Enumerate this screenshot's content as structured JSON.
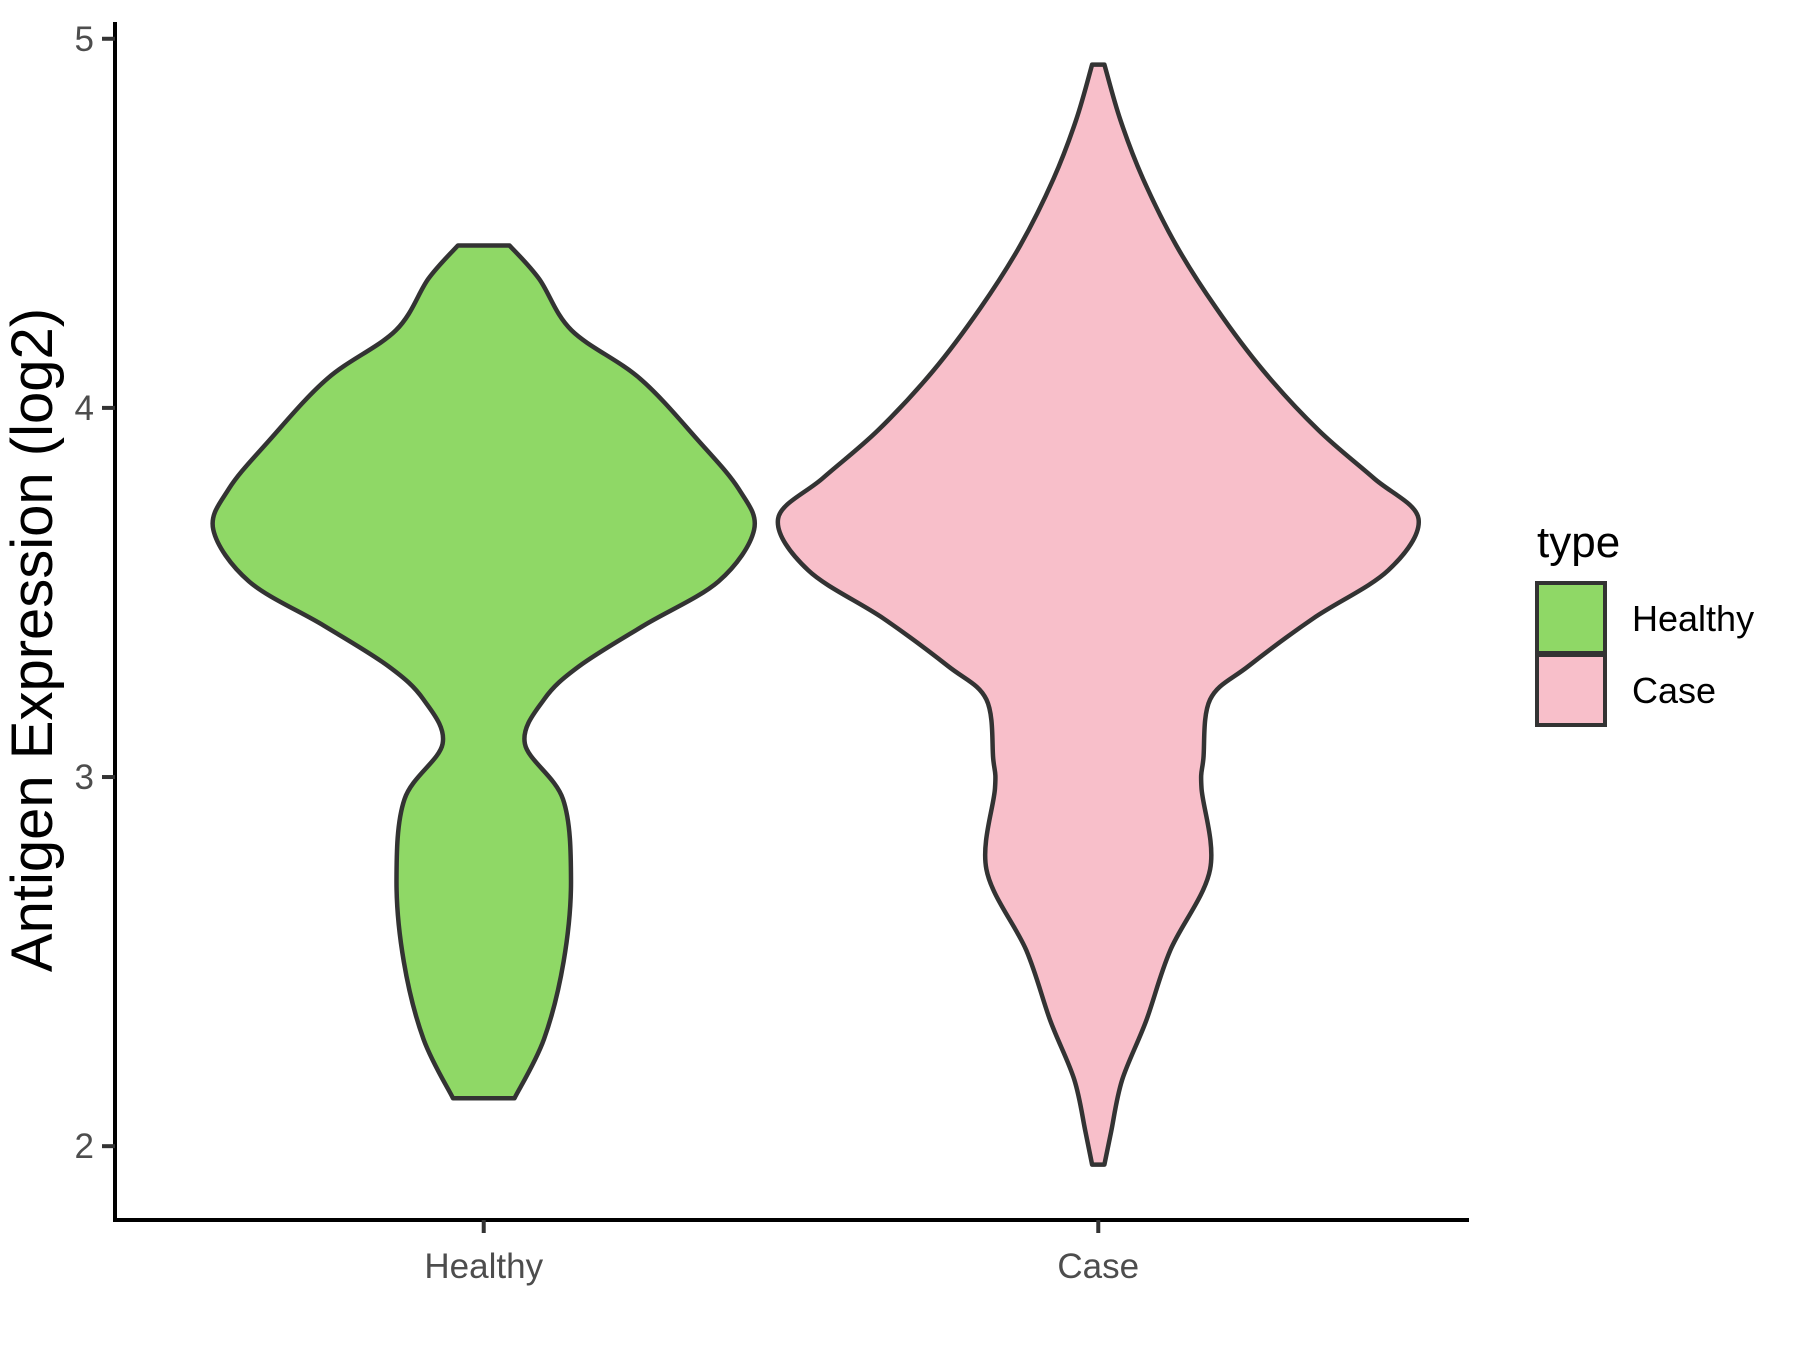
{
  "chart_data": {
    "type": "violin",
    "title": "",
    "xlabel": "",
    "ylabel": "Antigen Expression (log2)",
    "categories": [
      "Healthy",
      "Case"
    ],
    "y_ticks": [
      2,
      3,
      4,
      5
    ],
    "ylim": [
      1.8,
      5.04
    ],
    "grid": "off",
    "background": "#FFFFFF",
    "legend": {
      "title": "type",
      "position": "right",
      "entries": [
        "Healthy",
        "Case"
      ]
    },
    "series": [
      {
        "name": "Healthy",
        "color": "#8FD866",
        "outline": "#333333",
        "value_range": [
          2.13,
          4.44
        ],
        "widest_at_value": 3.67,
        "shape": "two-lobed: broad upper bulge near 3.7, narrow waist near 3.1, small lower lobe near 2.7, trimmed flat at both ends",
        "profile": [
          {
            "v": 4.44,
            "w": 0.042
          },
          {
            "v": 4.35,
            "w": 0.09
          },
          {
            "v": 4.21,
            "w": 0.143
          },
          {
            "v": 4.08,
            "w": 0.254
          },
          {
            "v": 3.91,
            "w": 0.35
          },
          {
            "v": 3.78,
            "w": 0.415
          },
          {
            "v": 3.67,
            "w": 0.44
          },
          {
            "v": 3.53,
            "w": 0.382
          },
          {
            "v": 3.41,
            "w": 0.26
          },
          {
            "v": 3.3,
            "w": 0.155
          },
          {
            "v": 3.21,
            "w": 0.098
          },
          {
            "v": 3.09,
            "w": 0.067
          },
          {
            "v": 2.94,
            "w": 0.129
          },
          {
            "v": 2.72,
            "w": 0.142
          },
          {
            "v": 2.5,
            "w": 0.13
          },
          {
            "v": 2.29,
            "w": 0.098
          },
          {
            "v": 2.13,
            "w": 0.05
          }
        ]
      },
      {
        "name": "Case",
        "color": "#F8BFCA",
        "outline": "#333333",
        "value_range": [
          1.95,
          4.93
        ],
        "widest_at_value": 3.7,
        "shape": "long spindle: pointed tips at both ends, broad bulge near 3.7, gentle waist near 3.0, slight lower lobe near 2.75",
        "profile": [
          {
            "v": 4.93,
            "w": 0.01
          },
          {
            "v": 4.78,
            "w": 0.036
          },
          {
            "v": 4.62,
            "w": 0.073
          },
          {
            "v": 4.44,
            "w": 0.127
          },
          {
            "v": 4.27,
            "w": 0.192
          },
          {
            "v": 4.1,
            "w": 0.269
          },
          {
            "v": 3.94,
            "w": 0.358
          },
          {
            "v": 3.81,
            "w": 0.448
          },
          {
            "v": 3.7,
            "w": 0.521
          },
          {
            "v": 3.56,
            "w": 0.472
          },
          {
            "v": 3.43,
            "w": 0.35
          },
          {
            "v": 3.3,
            "w": 0.244
          },
          {
            "v": 3.21,
            "w": 0.182
          },
          {
            "v": 3.05,
            "w": 0.171
          },
          {
            "v": 2.97,
            "w": 0.168
          },
          {
            "v": 2.75,
            "w": 0.182
          },
          {
            "v": 2.53,
            "w": 0.117
          },
          {
            "v": 2.34,
            "w": 0.078
          },
          {
            "v": 2.18,
            "w": 0.039
          },
          {
            "v": 2.04,
            "w": 0.021
          },
          {
            "v": 1.95,
            "w": 0.01
          }
        ]
      }
    ]
  }
}
